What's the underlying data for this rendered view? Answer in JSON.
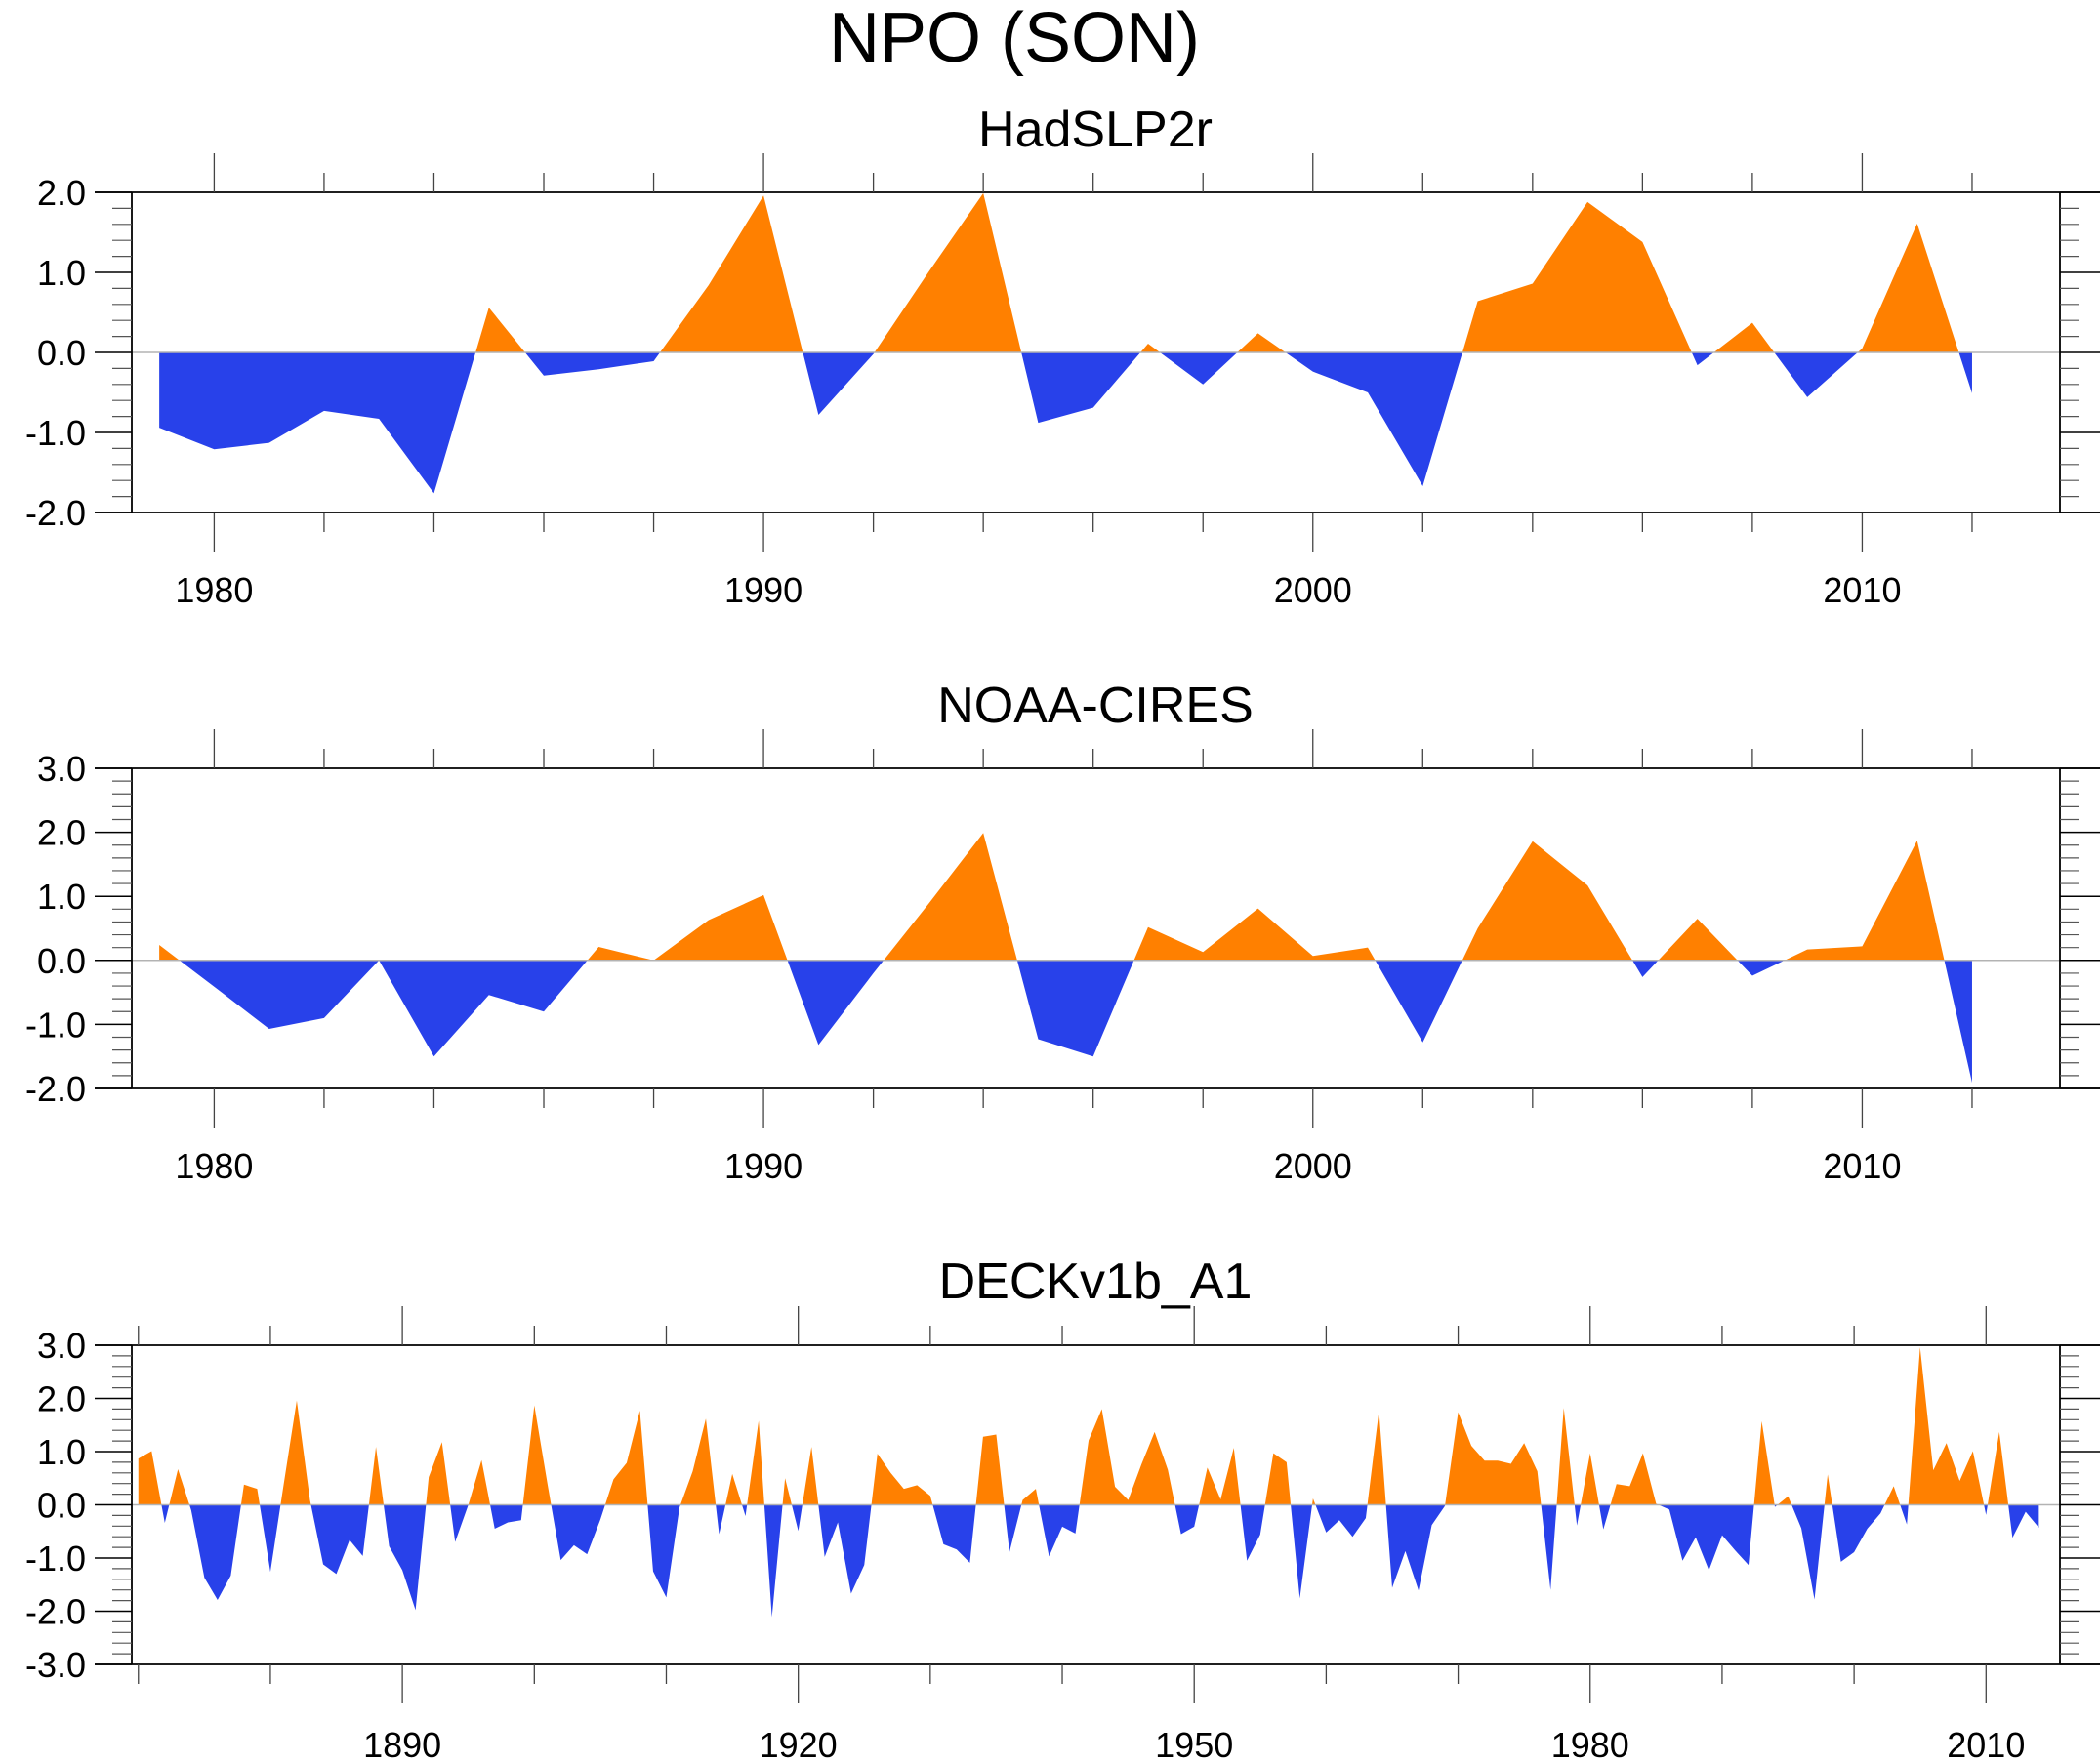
{
  "figure": {
    "title": "NPO (SON)",
    "colors": {
      "positive": "#ff8000",
      "negative": "#2841ea",
      "axis": "#000000",
      "zero_line": "#b3b3b3"
    }
  },
  "chart_data": [
    {
      "type": "area",
      "title": "HadSLP2r",
      "xlabel": "",
      "ylabel": "",
      "xlim": [
        1978.5,
        2013.6
      ],
      "ylim": [
        -2.0,
        2.0
      ],
      "x_ticks": [
        1980,
        1990,
        2000,
        2010
      ],
      "x_tick_labels": [
        "1980",
        "1990",
        "2000",
        "2010"
      ],
      "x_minor_step": 2,
      "y_ticks": [
        -2.0,
        -1.0,
        0.0,
        1.0,
        2.0
      ],
      "y_tick_labels": [
        "-2.0",
        "-1.0",
        "0.0",
        "1.0",
        "2.0"
      ],
      "y_minor_step": 0.2,
      "grid": false,
      "fill_reference": 0,
      "x": [
        1979,
        1980,
        1981,
        1982,
        1983,
        1984,
        1985,
        1986,
        1987,
        1988,
        1989,
        1990,
        1991,
        1992,
        1993,
        1994,
        1995,
        1996,
        1997,
        1998,
        1999,
        2000,
        2001,
        2002,
        2003,
        2004,
        2005,
        2006,
        2007,
        2008,
        2009,
        2010,
        2011,
        2012
      ],
      "values": [
        -0.94,
        -1.21,
        -1.13,
        -0.73,
        -0.83,
        -1.76,
        0.56,
        -0.29,
        -0.21,
        -0.11,
        0.84,
        1.96,
        -0.78,
        -0.02,
        1.0,
        1.99,
        -0.88,
        -0.69,
        0.11,
        -0.4,
        0.24,
        -0.24,
        -0.5,
        -1.67,
        0.64,
        0.86,
        1.88,
        1.38,
        -0.16,
        0.37,
        -0.56,
        0.05,
        1.61,
        -0.51
      ]
    },
    {
      "type": "area",
      "title": "NOAA-CIRES",
      "xlabel": "",
      "ylabel": "",
      "xlim": [
        1978.5,
        2013.6
      ],
      "ylim": [
        -2.0,
        3.0
      ],
      "x_ticks": [
        1980,
        1990,
        2000,
        2010
      ],
      "x_tick_labels": [
        "1980",
        "1990",
        "2000",
        "2010"
      ],
      "x_minor_step": 2,
      "y_ticks": [
        -2.0,
        -1.0,
        0.0,
        1.0,
        2.0,
        3.0
      ],
      "y_tick_labels": [
        "-2.0",
        "-1.0",
        "0.0",
        "1.0",
        "2.0",
        "3.0"
      ],
      "y_minor_step": 0.2,
      "grid": false,
      "fill_reference": 0,
      "x": [
        1979,
        1980,
        1981,
        1982,
        1983,
        1984,
        1985,
        1986,
        1987,
        1988,
        1989,
        1990,
        1991,
        1992,
        1993,
        1994,
        1995,
        1996,
        1997,
        1998,
        1999,
        2000,
        2001,
        2002,
        2003,
        2004,
        2005,
        2006,
        2007,
        2008,
        2009,
        2010,
        2011,
        2012
      ],
      "values": [
        0.24,
        -0.41,
        -1.07,
        -0.9,
        0.0,
        -1.5,
        -0.54,
        -0.8,
        0.21,
        0.0,
        0.63,
        1.02,
        -1.32,
        -0.2,
        0.88,
        1.99,
        -1.23,
        -1.5,
        0.52,
        0.13,
        0.81,
        0.07,
        0.2,
        -1.28,
        0.5,
        1.86,
        1.17,
        -0.26,
        0.65,
        -0.24,
        0.17,
        0.22,
        1.87,
        -1.91
      ]
    },
    {
      "type": "area",
      "title": "DECKv1b_A1",
      "xlabel": "",
      "ylabel": "",
      "xlim": [
        1869.5,
        2015.6
      ],
      "ylim": [
        -3.0,
        3.0
      ],
      "x_ticks": [
        1890,
        1920,
        1950,
        1980,
        2010
      ],
      "x_tick_labels": [
        "1890",
        "1920",
        "1950",
        "1980",
        "2010"
      ],
      "x_minor_step": 10,
      "y_ticks": [
        -3.0,
        -2.0,
        -1.0,
        0.0,
        1.0,
        2.0,
        3.0
      ],
      "y_tick_labels": [
        "-3.0",
        "-2.0",
        "-1.0",
        "0.0",
        "1.0",
        "2.0",
        "3.0"
      ],
      "y_minor_step": 0.2,
      "grid": false,
      "fill_reference": 0,
      "x_start": 1870,
      "values": [
        0.87,
        1.01,
        -0.34,
        0.67,
        -0.1,
        -1.37,
        -1.79,
        -1.33,
        0.38,
        0.3,
        -1.26,
        0.37,
        1.96,
        0.09,
        -1.12,
        -1.3,
        -0.66,
        -0.96,
        1.09,
        -0.78,
        -1.23,
        -1.98,
        0.52,
        1.18,
        -0.7,
        0.0,
        0.84,
        -0.45,
        -0.33,
        -0.29,
        1.87,
        0.39,
        -1.04,
        -0.76,
        -0.93,
        -0.28,
        0.48,
        0.79,
        1.77,
        -1.25,
        -1.74,
        -0.05,
        0.63,
        1.62,
        -0.55,
        0.58,
        -0.21,
        1.58,
        -2.11,
        0.5,
        -0.49,
        1.09,
        -0.98,
        -0.33,
        -1.67,
        -1.13,
        0.96,
        0.6,
        0.3,
        0.37,
        0.17,
        -0.74,
        -0.84,
        -1.09,
        1.28,
        1.32,
        -0.89,
        0.09,
        0.3,
        -0.97,
        -0.41,
        -0.54,
        1.21,
        1.8,
        0.34,
        0.09,
        0.76,
        1.37,
        0.66,
        -0.55,
        -0.41,
        0.7,
        0.1,
        1.07,
        -1.05,
        -0.56,
        0.97,
        0.8,
        -1.76,
        0.12,
        -0.52,
        -0.29,
        -0.6,
        -0.25,
        1.77,
        -1.56,
        -0.87,
        -1.61,
        -0.38,
        -0.02,
        1.74,
        1.11,
        0.83,
        0.83,
        0.77,
        1.16,
        0.63,
        -1.6,
        1.82,
        -0.39,
        0.97,
        -0.46,
        0.39,
        0.35,
        0.97,
        0.02,
        -0.09,
        -1.05,
        -0.61,
        -1.23,
        -0.57,
        -0.86,
        -1.13,
        1.57,
        -0.04,
        0.16,
        -0.44,
        -1.78,
        0.57,
        -1.07,
        -0.89,
        -0.45,
        -0.16,
        0.35,
        -0.37,
        2.96,
        0.65,
        1.16,
        0.45,
        1.01,
        -0.19,
        1.37,
        -0.62,
        -0.13,
        -0.43
      ]
    }
  ]
}
